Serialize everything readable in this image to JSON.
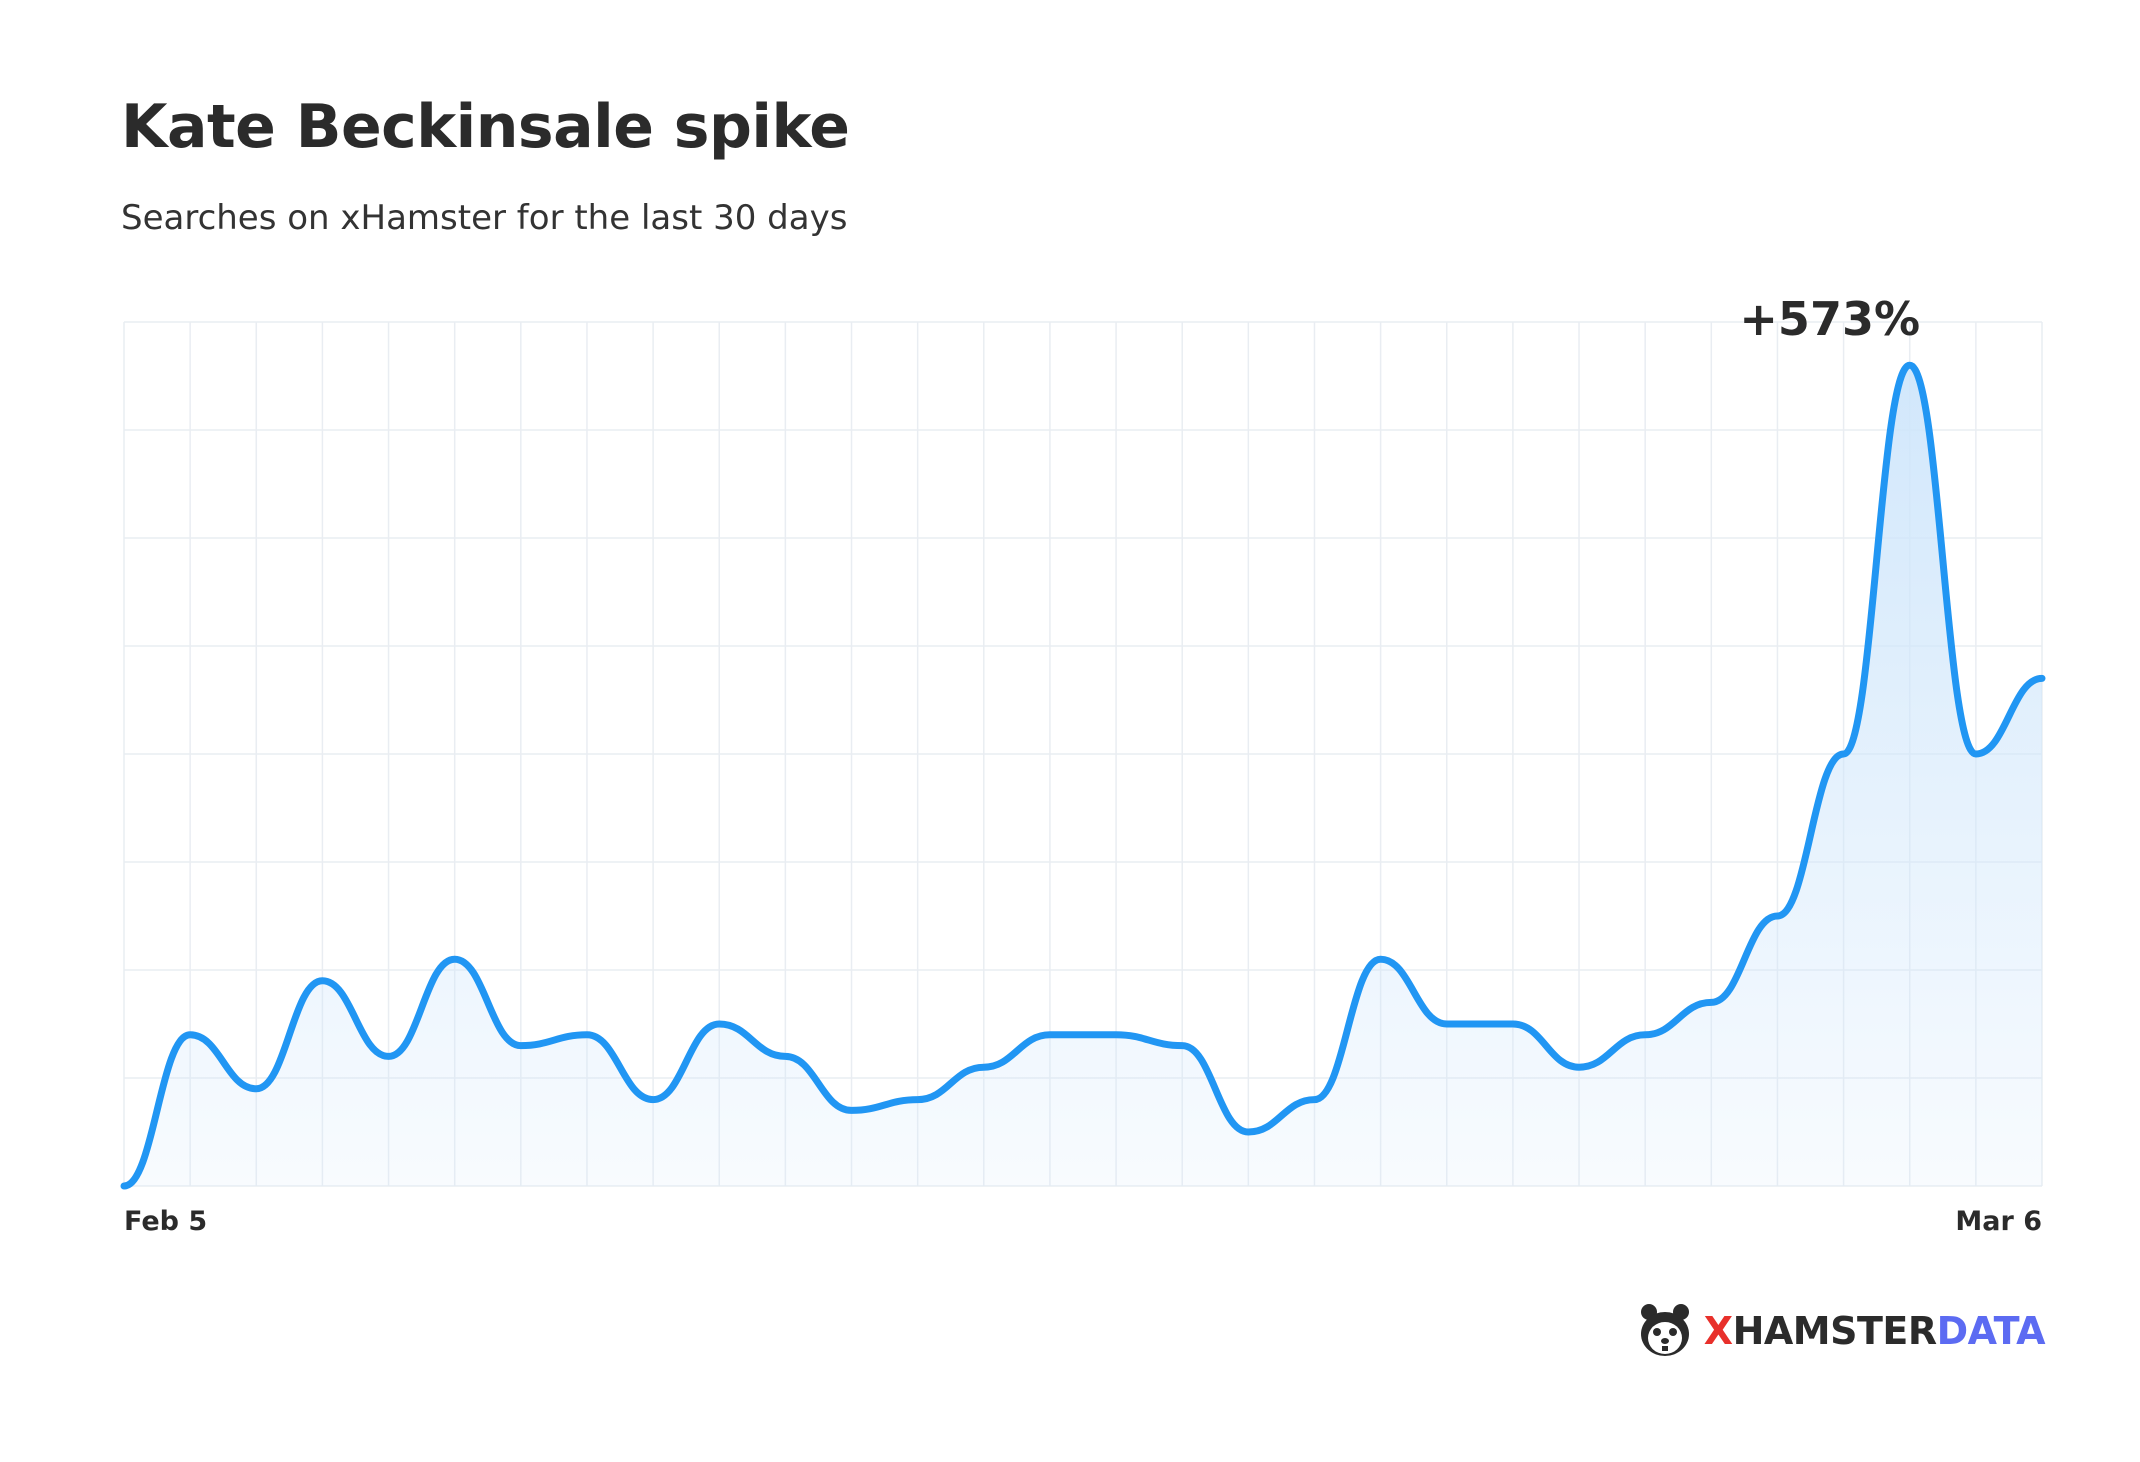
{
  "title": "Kate Beckinsale spike",
  "subtitle": "Searches on xHamster for the last 30 days",
  "brand": {
    "x": "X",
    "name": "HAMSTER",
    "suffix": "DATA",
    "icon": "hamster-icon"
  },
  "colors": {
    "line": "#2196f3",
    "fill": "#d6ebfc",
    "grid": "#e9edf2",
    "brand_x": "#e8302b",
    "brand_data": "#5c6bf2"
  },
  "chart_data": {
    "type": "area",
    "title": "Kate Beckinsale spike",
    "subtitle": "Searches on xHamster for the last 30 days",
    "x_tick_labels": {
      "first": "Feb 5",
      "last": "Mar 6"
    },
    "grid": true,
    "annotation": {
      "text": "+573%",
      "index": 27
    },
    "series": [
      {
        "values": [
          0,
          14,
          9,
          19,
          12,
          21,
          13,
          14,
          8,
          15,
          12,
          7,
          8,
          11,
          14,
          14,
          13,
          5,
          8,
          21,
          15,
          15,
          11,
          14,
          17,
          25,
          40,
          76,
          40,
          47
        ]
      }
    ],
    "ylim": [
      0,
      80
    ]
  }
}
